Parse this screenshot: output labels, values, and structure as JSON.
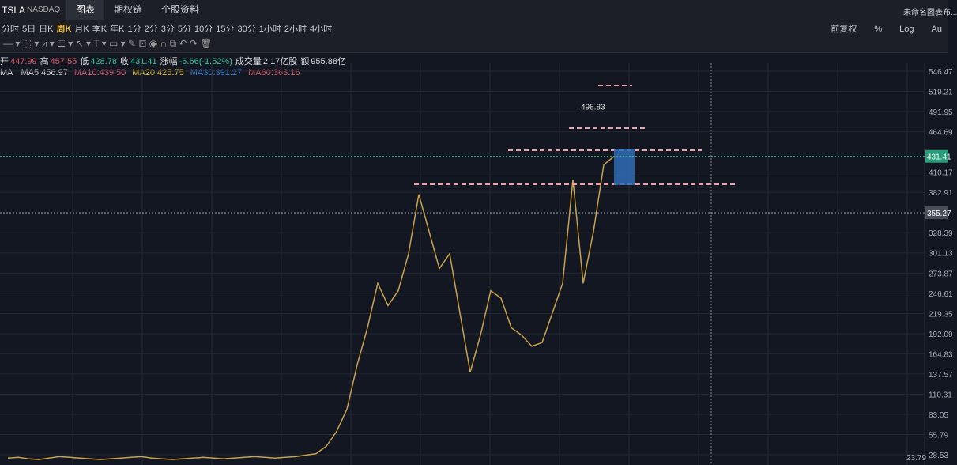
{
  "header": {
    "symbol": "TSLA",
    "exchange": "NASDAQ",
    "tabs": [
      "图表",
      "期权链",
      "个股资料"
    ],
    "layout_name": "未命名图表布..."
  },
  "periods": [
    "分时",
    "5日",
    "日K",
    "周K",
    "月K",
    "季K",
    "年K",
    "1分",
    "2分",
    "3分",
    "5分",
    "10分",
    "15分",
    "30分",
    "1小时",
    "2小时",
    "4小时"
  ],
  "active_period": 3,
  "right_tools": [
    "前复权",
    "%",
    "Log",
    "Au"
  ],
  "quote": [
    [
      "开",
      "447.99"
    ],
    [
      "高",
      "457.55"
    ],
    [
      "低",
      "428.78"
    ],
    [
      "收",
      "431.41"
    ],
    [
      "涨幅",
      "-6.66(-1.52%)"
    ],
    [
      "成交量",
      "2.17亿股"
    ],
    [
      "额",
      "955.88亿"
    ]
  ],
  "ma": {
    "label": "MA",
    "items": [
      {
        "text": "MA5:456.97",
        "color": "#d9d9d9"
      },
      {
        "text": "MA10:439.50",
        "color": "#e0607e"
      },
      {
        "text": "MA20:425.75",
        "color": "#e8c547"
      },
      {
        "text": "MA30:391.27",
        "color": "#3d7fd9"
      },
      {
        "text": "MA60:363.16",
        "color": "#d0606a"
      }
    ]
  },
  "chart_data": {
    "type": "line",
    "color": "#c9a24a",
    "ylim": [
      28.53,
      546.47
    ],
    "yticks": [
      546.47,
      519.21,
      491.95,
      464.69,
      410.17,
      382.91,
      328.39,
      301.13,
      273.87,
      246.61,
      219.35,
      192.09,
      164.83,
      137.57,
      110.31,
      83.05,
      55.79,
      28.53
    ],
    "high_label": 498.83,
    "last_price": 431.41,
    "cross_price": 355.27,
    "low_label": 23.79,
    "values": [
      24,
      25,
      23,
      22,
      24,
      26,
      25,
      24,
      23,
      22,
      23,
      24,
      25,
      26,
      24,
      23,
      22,
      23,
      24,
      25,
      24,
      23,
      24,
      25,
      26,
      25,
      24,
      25,
      26,
      28,
      30,
      40,
      60,
      90,
      150,
      200,
      260,
      230,
      250,
      300,
      380,
      330,
      280,
      300,
      220,
      140,
      190,
      250,
      240,
      200,
      190,
      175,
      180,
      220,
      260,
      400,
      260,
      330,
      420,
      431.41
    ]
  }
}
